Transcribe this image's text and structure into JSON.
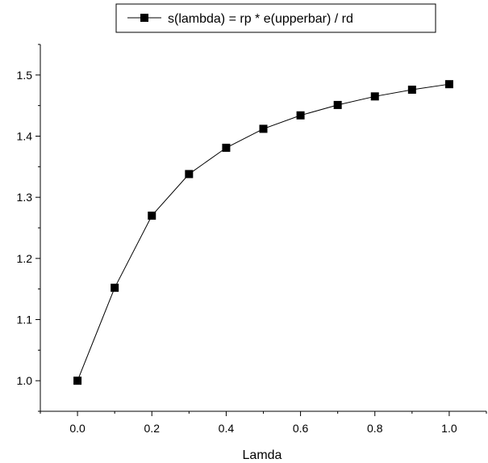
{
  "chart_data": {
    "type": "line",
    "title": "",
    "xlabel": "Lamda",
    "ylabel": "",
    "xlim": [
      -0.1,
      1.1
    ],
    "ylim": [
      0.95,
      1.55
    ],
    "xticks": [
      "0.0",
      "0.2",
      "0.4",
      "0.6",
      "0.8",
      "1.0"
    ],
    "xtick_values": [
      0.0,
      0.2,
      0.4,
      0.6,
      0.8,
      1.0
    ],
    "yticks": [
      "1.0",
      "1.1",
      "1.2",
      "1.3",
      "1.4",
      "1.5"
    ],
    "ytick_values": [
      1.0,
      1.1,
      1.2,
      1.3,
      1.4,
      1.5
    ],
    "grid": false,
    "legend_position": "top-center",
    "series": [
      {
        "name": "s(lambda) = rp * e(upperbar) / rd",
        "marker": "square",
        "color": "#000000",
        "x": [
          0.0,
          0.1,
          0.2,
          0.3,
          0.4,
          0.5,
          0.6,
          0.7,
          0.8,
          0.9,
          1.0
        ],
        "y": [
          1.0,
          1.152,
          1.27,
          1.338,
          1.381,
          1.412,
          1.434,
          1.451,
          1.465,
          1.476,
          1.485
        ]
      }
    ]
  }
}
